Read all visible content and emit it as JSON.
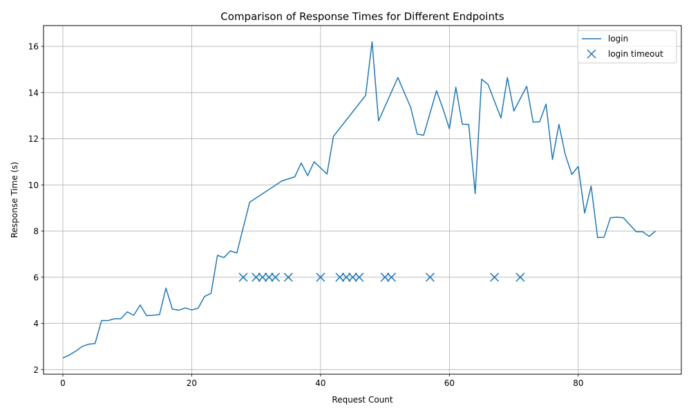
{
  "chart_data": {
    "type": "line",
    "title": "Comparison of Response Times for Different Endpoints",
    "xlabel": "Request Count",
    "ylabel": "Response Time (s)",
    "xlim": [
      -3,
      96
    ],
    "ylim": [
      1.8,
      16.9
    ],
    "xticks": [
      0,
      20,
      40,
      60,
      80
    ],
    "yticks": [
      2,
      4,
      6,
      8,
      10,
      12,
      14,
      16
    ],
    "grid": true,
    "legend_position": "top-right",
    "color": "#1f77b4",
    "series": [
      {
        "name": "login",
        "kind": "line",
        "x": [
          0,
          1,
          2,
          3,
          4,
          5,
          6,
          7,
          8,
          9,
          10,
          11,
          12,
          13,
          15,
          16,
          17,
          18,
          19,
          20,
          21,
          22,
          23,
          24,
          25,
          26,
          27,
          29,
          34,
          36,
          37,
          38,
          39,
          41,
          42,
          47,
          48,
          49,
          52,
          54,
          55,
          56,
          58,
          59,
          60,
          61,
          62,
          63,
          64,
          65,
          66,
          68,
          69,
          70,
          72,
          73,
          74,
          75,
          76,
          77,
          78,
          79,
          80,
          81,
          82,
          83,
          84,
          85,
          86,
          87,
          89,
          90,
          91,
          92
        ],
        "y": [
          2.5,
          2.63,
          2.8,
          3.0,
          3.1,
          3.13,
          4.12,
          4.12,
          4.2,
          4.2,
          4.5,
          4.35,
          4.8,
          4.33,
          4.38,
          5.53,
          4.62,
          4.57,
          4.67,
          4.58,
          4.66,
          5.17,
          5.3,
          6.95,
          6.85,
          7.14,
          7.05,
          9.25,
          10.17,
          10.35,
          10.95,
          10.4,
          11.0,
          10.47,
          12.1,
          13.88,
          16.2,
          12.77,
          14.65,
          13.35,
          12.2,
          12.15,
          14.08,
          13.3,
          12.43,
          14.23,
          12.63,
          12.62,
          9.62,
          14.58,
          14.35,
          12.9,
          14.65,
          13.2,
          14.27,
          12.72,
          12.73,
          13.5,
          11.1,
          12.62,
          11.3,
          10.45,
          10.8,
          8.78,
          9.95,
          7.72,
          7.73,
          8.58,
          8.6,
          8.58,
          7.97,
          7.97,
          7.77,
          8.0
        ]
      },
      {
        "name": "login timeout",
        "kind": "scatter",
        "marker": "x",
        "x": [
          28,
          30,
          31,
          32,
          33,
          35,
          40,
          43,
          44,
          45,
          46,
          50,
          51,
          57,
          67,
          71
        ],
        "y": [
          6,
          6,
          6,
          6,
          6,
          6,
          6,
          6,
          6,
          6,
          6,
          6,
          6,
          6,
          6,
          6
        ]
      }
    ]
  }
}
